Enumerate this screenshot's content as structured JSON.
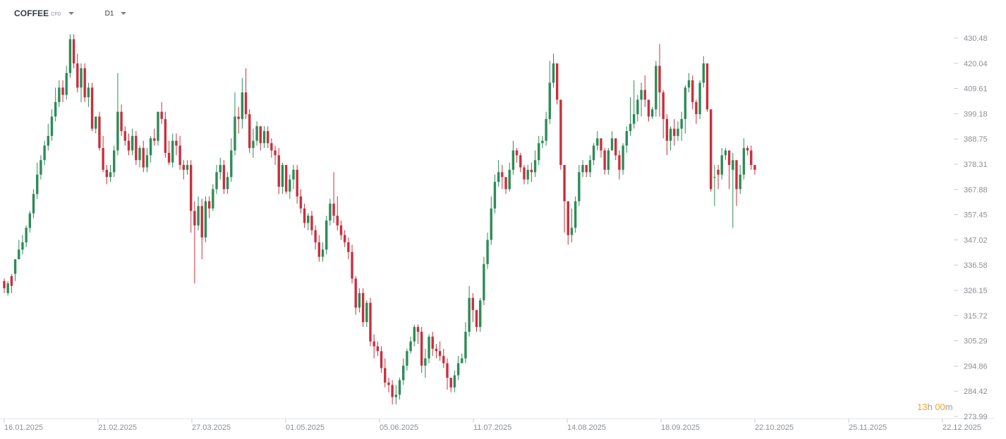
{
  "toolbar": {
    "symbol": "COFFEE",
    "symbol_type": "CFD",
    "timeframe": "D1",
    "symbol_caret_icon": "caret-down-icon",
    "timeframe_caret_icon": "caret-down-icon"
  },
  "countdown": {
    "hours": "13",
    "hours_unit": "h",
    "minutes": "00",
    "minutes_unit": "m"
  },
  "colors": {
    "up": "#2e8b57",
    "down": "#c8303d",
    "wick": "#333333",
    "axis_text": "#8c8f95",
    "countdown": "#f5a524"
  },
  "chart_data": {
    "type": "candlestick",
    "y_ticks": [
      "430.48",
      "420.04",
      "409.61",
      "399.18",
      "388.75",
      "378.31",
      "367.88",
      "357.45",
      "347.02",
      "336.58",
      "326.15",
      "315.72",
      "305.29",
      "294.86",
      "284.42",
      "273.99"
    ],
    "ylim": [
      273.99,
      430.48
    ],
    "x_ticks": [
      "16.01.2025",
      "21.02.2025",
      "27.03.2025",
      "01.05.2025",
      "05.06.2025",
      "11.07.2025",
      "14.08.2025",
      "18.09.2025",
      "22.10.2025",
      "25.11.2025",
      "22.12.2025"
    ],
    "grid": false,
    "closes": [
      327.0,
      329.0,
      328.0,
      339.0,
      343.0,
      346.0,
      352.0,
      358.0,
      366.0,
      374.0,
      380.0,
      386.0,
      390.0,
      398.0,
      404.0,
      410.0,
      407.0,
      416.0,
      430.0,
      420.0,
      410.0,
      418.0,
      406.0,
      410.0,
      393.0,
      398.0,
      385.0,
      376.0,
      373.0,
      375.0,
      384.0,
      400.0,
      392.0,
      388.0,
      384.0,
      390.0,
      380.0,
      385.0,
      377.0,
      382.0,
      389.0,
      388.0,
      400.0,
      397.0,
      383.0,
      379.0,
      388.0,
      386.0,
      378.0,
      376.0,
      378.0,
      359.0,
      353.0,
      361.0,
      348.0,
      363.0,
      360.0,
      368.0,
      375.0,
      378.0,
      368.0,
      373.0,
      384.0,
      398.0,
      397.0,
      408.0,
      399.0,
      385.0,
      388.0,
      394.0,
      387.0,
      392.0,
      387.0,
      384.0,
      382.0,
      369.0,
      378.0,
      367.0,
      372.0,
      376.0,
      365.0,
      360.0,
      354.0,
      357.0,
      351.0,
      346.0,
      340.0,
      343.0,
      355.0,
      362.0,
      357.0,
      353.0,
      349.0,
      346.0,
      342.0,
      331.0,
      319.0,
      325.0,
      313.0,
      321.0,
      305.0,
      303.0,
      301.0,
      294.0,
      288.0,
      287.0,
      282.0,
      283.0,
      289.0,
      295.0,
      301.0,
      305.0,
      311.0,
      309.0,
      295.0,
      298.0,
      307.0,
      302.0,
      301.0,
      299.0,
      296.0,
      290.0,
      286.0,
      291.0,
      296.0,
      298.0,
      309.0,
      323.0,
      318.0,
      311.0,
      322.0,
      337.0,
      347.0,
      360.0,
      371.0,
      375.0,
      373.0,
      368.0,
      376.0,
      384.0,
      382.0,
      377.0,
      372.0,
      376.0,
      375.0,
      380.0,
      387.0,
      388.0,
      397.0,
      412.0,
      420.0,
      405.0,
      378.0,
      363.0,
      349.0,
      352.0,
      363.0,
      375.0,
      378.0,
      375.0,
      380.0,
      386.0,
      389.0,
      384.0,
      376.0,
      384.0,
      389.0,
      382.0,
      376.0,
      386.0,
      392.0,
      395.0,
      399.0,
      405.0,
      409.0,
      405.0,
      398.0,
      401.0,
      419.0,
      408.0,
      397.0,
      388.0,
      393.0,
      390.0,
      393.0,
      397.0,
      410.0,
      413.0,
      404.0,
      399.0,
      412.0,
      420.0,
      401.0,
      368.0,
      373.0,
      374.0,
      382.0,
      384.0,
      378.0,
      380.0,
      368.0,
      374.0,
      385.0,
      384.0,
      378.0,
      376.0
    ],
    "opens": [
      330.0,
      325.0,
      332.0,
      333.0,
      339.0,
      343.0,
      346.0,
      352.0,
      358.0,
      366.0,
      374.0,
      380.0,
      386.0,
      390.0,
      398.0,
      404.0,
      410.0,
      407.0,
      416.0,
      430.0,
      420.0,
      410.0,
      418.0,
      406.0,
      410.0,
      393.0,
      398.0,
      385.0,
      376.0,
      373.0,
      375.0,
      384.0,
      400.0,
      392.0,
      388.0,
      384.0,
      390.0,
      380.0,
      385.0,
      377.0,
      382.0,
      389.0,
      388.0,
      400.0,
      397.0,
      383.0,
      379.0,
      388.0,
      386.0,
      378.0,
      376.0,
      378.0,
      359.0,
      353.0,
      361.0,
      348.0,
      363.0,
      360.0,
      368.0,
      375.0,
      378.0,
      368.0,
      373.0,
      384.0,
      398.0,
      397.0,
      408.0,
      399.0,
      385.0,
      388.0,
      394.0,
      387.0,
      392.0,
      387.0,
      384.0,
      382.0,
      369.0,
      378.0,
      367.0,
      372.0,
      376.0,
      365.0,
      360.0,
      354.0,
      357.0,
      351.0,
      346.0,
      340.0,
      343.0,
      355.0,
      362.0,
      357.0,
      353.0,
      349.0,
      346.0,
      342.0,
      331.0,
      319.0,
      325.0,
      313.0,
      321.0,
      305.0,
      303.0,
      301.0,
      294.0,
      288.0,
      287.0,
      282.0,
      283.0,
      289.0,
      295.0,
      301.0,
      305.0,
      311.0,
      309.0,
      295.0,
      298.0,
      307.0,
      302.0,
      301.0,
      299.0,
      296.0,
      290.0,
      286.0,
      291.0,
      296.0,
      298.0,
      309.0,
      323.0,
      318.0,
      311.0,
      322.0,
      337.0,
      347.0,
      360.0,
      371.0,
      375.0,
      373.0,
      368.0,
      376.0,
      384.0,
      382.0,
      377.0,
      372.0,
      376.0,
      375.0,
      380.0,
      387.0,
      388.0,
      397.0,
      412.0,
      420.0,
      405.0,
      378.0,
      363.0,
      349.0,
      352.0,
      363.0,
      375.0,
      378.0,
      375.0,
      380.0,
      386.0,
      389.0,
      384.0,
      376.0,
      384.0,
      389.0,
      382.0,
      376.0,
      386.0,
      392.0,
      395.0,
      399.0,
      405.0,
      409.0,
      405.0,
      398.0,
      401.0,
      419.0,
      408.0,
      397.0,
      388.0,
      393.0,
      390.0,
      393.0,
      397.0,
      410.0,
      413.0,
      404.0,
      399.0,
      412.0,
      420.0,
      401.0,
      373.0,
      376.0,
      374.0,
      382.0,
      384.0,
      376.0,
      380.0,
      368.0,
      374.0,
      385.0,
      384.0,
      378.0
    ],
    "highs": [
      331.0,
      330.0,
      333.0,
      339.0,
      347.0,
      349.0,
      353.0,
      359.0,
      368.0,
      379.0,
      382.0,
      388.0,
      395.0,
      401.0,
      410.0,
      413.0,
      413.0,
      419.0,
      432.0,
      432.0,
      424.0,
      420.0,
      420.0,
      412.0,
      412.0,
      395.0,
      400.0,
      390.0,
      378.0,
      378.0,
      386.0,
      416.0,
      403.0,
      394.0,
      391.0,
      393.0,
      392.0,
      386.0,
      388.0,
      385.0,
      390.0,
      393.0,
      400.0,
      404.0,
      400.0,
      388.0,
      391.0,
      391.0,
      390.0,
      380.0,
      380.0,
      380.0,
      363.0,
      365.0,
      364.0,
      365.0,
      365.0,
      370.0,
      378.0,
      381.0,
      380.0,
      375.0,
      389.0,
      408.0,
      402.0,
      414.0,
      418.0,
      401.0,
      393.0,
      396.0,
      392.0,
      394.0,
      394.0,
      389.0,
      386.0,
      385.0,
      379.0,
      378.0,
      374.0,
      378.0,
      378.0,
      368.0,
      362.0,
      358.0,
      359.0,
      353.0,
      349.0,
      346.0,
      357.0,
      364.0,
      375.0,
      365.0,
      355.0,
      351.0,
      348.0,
      345.0,
      332.0,
      327.0,
      327.0,
      322.0,
      323.0,
      308.0,
      305.0,
      303.0,
      298.0,
      290.0,
      289.0,
      287.0,
      290.0,
      298.0,
      302.0,
      307.0,
      312.0,
      312.0,
      311.0,
      302.0,
      308.0,
      309.0,
      304.0,
      305.0,
      302.0,
      298.0,
      290.0,
      293.0,
      299.0,
      300.0,
      313.0,
      328.0,
      325.0,
      313.0,
      323.0,
      340.0,
      350.0,
      365.0,
      374.0,
      380.0,
      378.0,
      373.0,
      379.0,
      388.0,
      385.0,
      383.0,
      378.0,
      378.0,
      379.0,
      384.0,
      390.0,
      390.0,
      400.0,
      421.0,
      424.0,
      407.0,
      385.0,
      368.0,
      354.0,
      360.0,
      365.0,
      378.0,
      380.0,
      378.0,
      382.0,
      387.0,
      392.0,
      388.0,
      385.0,
      385.0,
      392.0,
      385.0,
      384.0,
      387.0,
      394.0,
      406.0,
      413.0,
      407.0,
      412.0,
      415.0,
      402.0,
      402.0,
      421.0,
      428.0,
      409.0,
      399.0,
      394.0,
      397.0,
      396.0,
      400.0,
      411.0,
      416.0,
      415.0,
      405.0,
      413.0,
      423.0,
      420.0,
      378.0,
      378.0,
      378.0,
      385.0,
      385.0,
      384.0,
      383.0,
      373.0,
      378.0,
      389.0,
      386.0,
      386.0,
      377.0
    ],
    "lows": [
      325.0,
      324.0,
      325.0,
      330.0,
      339.0,
      341.0,
      344.0,
      350.0,
      356.0,
      364.0,
      372.0,
      378.0,
      384.0,
      388.0,
      396.0,
      402.0,
      404.0,
      405.0,
      414.0,
      418.0,
      408.0,
      404.0,
      404.0,
      402.0,
      392.0,
      391.0,
      384.0,
      375.0,
      370.0,
      371.0,
      373.0,
      382.0,
      390.0,
      386.0,
      382.0,
      382.0,
      378.0,
      377.0,
      375.0,
      375.0,
      379.0,
      386.0,
      386.0,
      395.0,
      381.0,
      378.0,
      377.0,
      382.0,
      376.0,
      372.0,
      374.0,
      350.0,
      329.0,
      351.0,
      339.0,
      346.0,
      356.0,
      359.0,
      366.0,
      372.0,
      366.0,
      366.0,
      371.0,
      382.0,
      391.0,
      393.0,
      397.0,
      383.0,
      381.0,
      386.0,
      384.0,
      385.0,
      385.0,
      381.0,
      378.0,
      366.0,
      366.0,
      366.0,
      364.0,
      368.0,
      362.0,
      358.0,
      352.0,
      351.0,
      349.0,
      343.0,
      338.0,
      338.0,
      341.0,
      353.0,
      354.0,
      351.0,
      347.0,
      344.0,
      339.0,
      329.0,
      316.0,
      317.0,
      311.0,
      311.0,
      303.0,
      298.0,
      299.0,
      292.0,
      286.0,
      284.0,
      279.0,
      279.0,
      281.0,
      287.0,
      293.0,
      300.0,
      303.0,
      304.0,
      292.0,
      290.0,
      296.0,
      299.0,
      298.0,
      297.0,
      294.0,
      285.0,
      284.0,
      284.0,
      289.0,
      296.0,
      296.0,
      307.0,
      313.0,
      309.0,
      309.0,
      320.0,
      335.0,
      345.0,
      358.0,
      369.0,
      368.0,
      366.0,
      367.0,
      374.0,
      379.0,
      375.0,
      370.0,
      370.0,
      371.0,
      373.0,
      378.0,
      385.0,
      386.0,
      395.0,
      410.0,
      403.0,
      376.0,
      350.0,
      345.0,
      346.0,
      350.0,
      361.0,
      373.0,
      373.0,
      373.0,
      378.0,
      384.0,
      381.0,
      374.0,
      374.0,
      384.0,
      380.0,
      372.0,
      374.0,
      383.0,
      390.0,
      393.0,
      396.0,
      398.0,
      402.0,
      396.0,
      397.0,
      398.0,
      398.0,
      389.0,
      382.0,
      384.0,
      386.0,
      388.0,
      388.0,
      391.0,
      408.0,
      401.0,
      395.0,
      397.0,
      410.0,
      400.0,
      367.0,
      361.0,
      368.0,
      372.0,
      380.0,
      368.0,
      352.0,
      361.0,
      366.0,
      372.0,
      382.0,
      376.0,
      374.0
    ]
  }
}
